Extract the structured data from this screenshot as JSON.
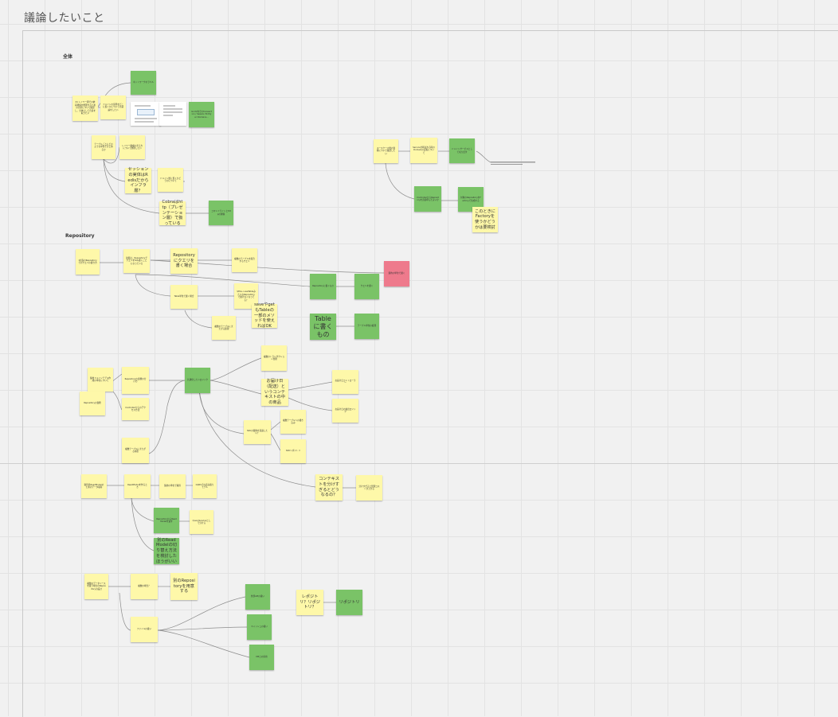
{
  "board": {
    "title": "議論したいこと"
  },
  "sections": {
    "overall": "全体",
    "repository": "Repository"
  },
  "notes": {
    "n01": "ネットワークのラベル",
    "n02": "01 レイヤー間での依存関係を整理するための方針について確認し、全体として合意を取りたい",
    "n03": "ドメインの境界をどこに置くかについての議論をしたい",
    "n04": "Gorm内でのtransaction / Session Entity er Domains...",
    "n05": "テーブルごとにどのような単位でまとめるか",
    "n06": "レイヤー構成の考え方について整理したい",
    "n07": "セッションの実体はRedisだからインフラ層？",
    "n08": "ドメイン層に置くかどうかについて",
    "n09": "Cobraはhttp（プレゼンテーション層）で扱っている",
    "n10": "コマンドラインとhttpの関係",
    "n11": "ユースケース層の責務について確認したい",
    "n12": "Serviceが呼ばれる時のDomainの定義について",
    "n13": "ドメインサービスとして切り出す",
    "n14": "ControllerからRepositoryを直接呼んでよいか",
    "n15": "対象のRepositoryをFactoryで生成する",
    "n16": "このときにFactoryを使うかどうかは要検討",
    "n17": "1対多のRepositoryでのクエリの書き方",
    "n18": "前提は、RepositoryでクエリをSQL書くことになっている",
    "n19": "Repositoryにクエリを書く場合",
    "n20": "複数のテーブルを結合するクエリ",
    "n21": "Repositoryに書くもの",
    "n22": "クエリを書く",
    "n23": "集約の単位で書く",
    "n24": "Table単位で書く場合",
    "n25": "$this->useTableみたいなRepositoryで書けなくなってる？",
    "n26": "saveやgetもTableの一部のメソッドを使えればOK",
    "n27": "複数のテーブルにまたがる処理",
    "n28": "Tableに書くもの",
    "n29": "テーブル単位の処理",
    "n30": "集約ドメインモデル作成の単位について",
    "n31": "Repositoryの責務の分け方",
    "n32": "Controllerからのアクセス方法",
    "n33": "Repositoryの責務",
    "n34": "複数テーブルにまたがる参照",
    "n35": "共通化したいロジック",
    "n36": "お届け日（配送）というコンテキストの中の商品",
    "n37": "お届け日コントローラー",
    "n38": "お届け日の抽出ロジック",
    "n39": "複数のトランザクション管理",
    "n40": "複数テーブルへの書き込み",
    "n41": "SKUの集約を意識したい？",
    "n42": "SKUリポジトリ",
    "n43": "コンテキストを分けすぎるとどうなるの？",
    "n44": "分けすぎると管理コストが上がる",
    "n45": "取得系ReadModelのためのデータ取得",
    "n46": "ReadModelを作るとき",
    "n47": "集約の単位で取得",
    "n48": "RepositoryからReadModelを返す",
    "n49": "QueryServiceとして分ける",
    "n50": "別のReadModelの切り替え方法を検討したほうがいい",
    "n51": "CQRSでの読み取りモデル",
    "n52": "複数のデータソースを扱う場合のRepositoryの設計",
    "n53": "複数の場合？",
    "n54": "別のRepositoryを用意する",
    "n55": "外部APIの扱い",
    "n56": "キャッシュの扱い",
    "n57": "DBとの併用",
    "n58": "ファイルの扱い",
    "n59": "レポジトリ？リポジトリ？",
    "n60": "リポジトリ"
  }
}
